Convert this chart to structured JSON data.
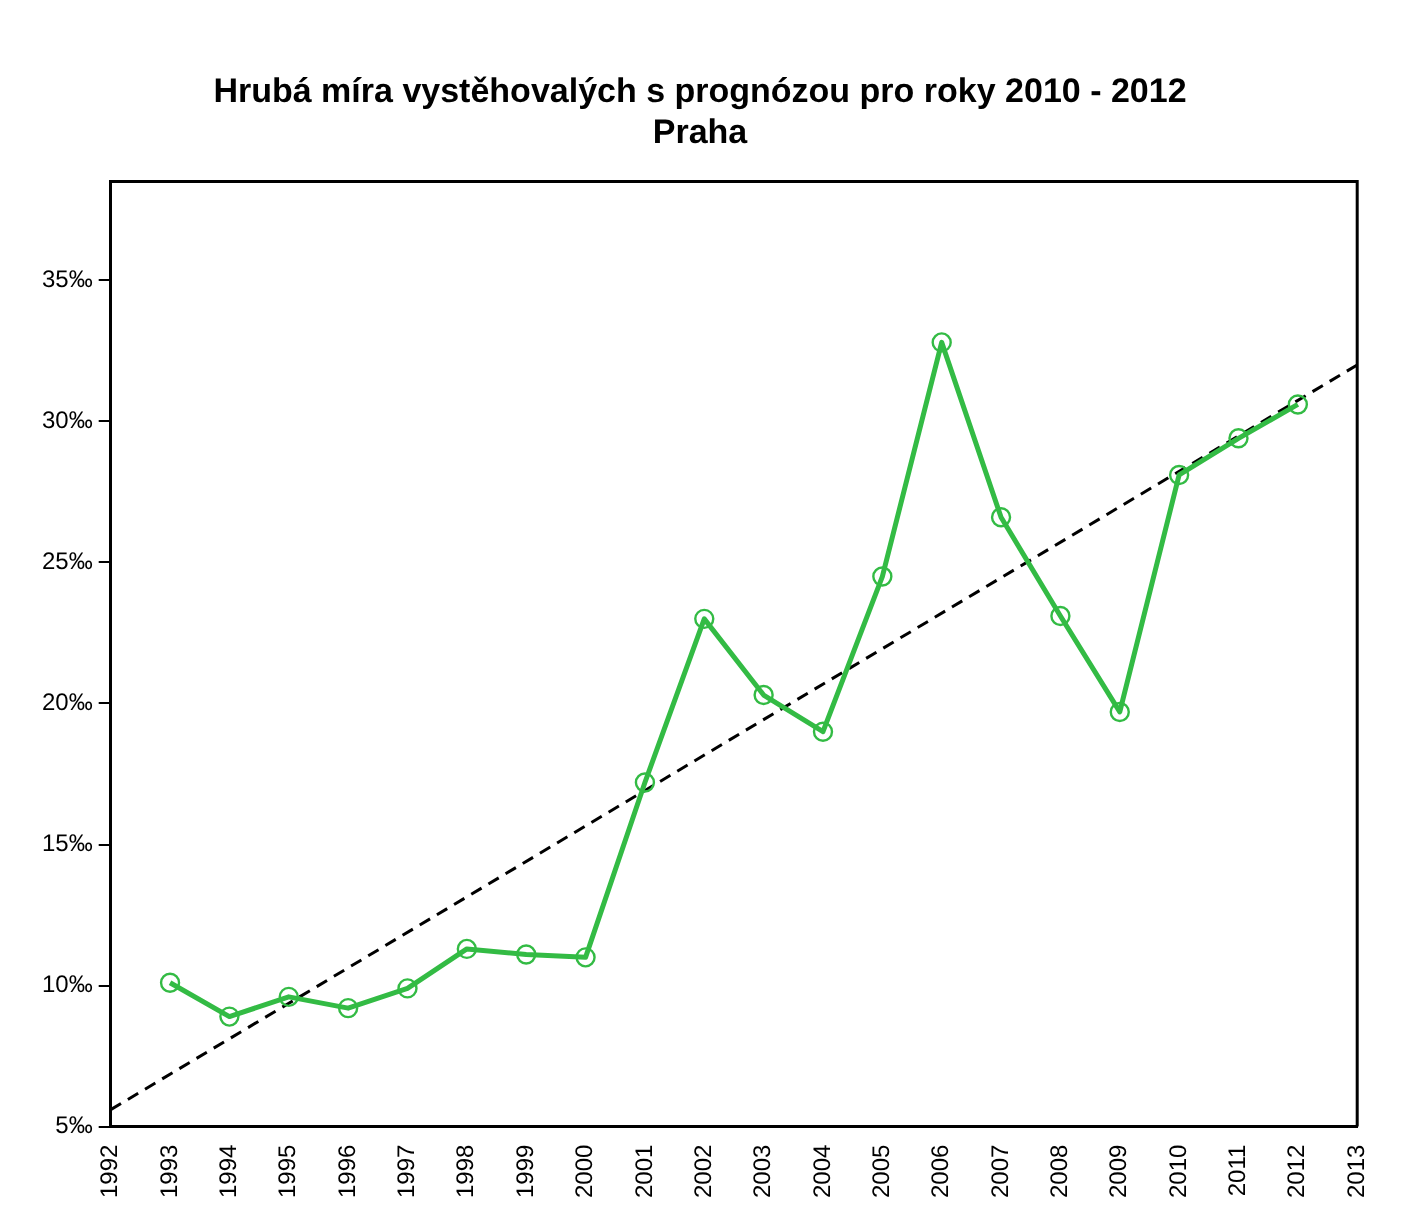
{
  "chart_data": {
    "type": "line",
    "title": "Hrubá míra vystěhovalých s prognózou pro roky 2010 - 2012",
    "subtitle": "Praha",
    "x": [
      1993,
      1994,
      1995,
      1996,
      1997,
      1998,
      1999,
      2000,
      2001,
      2002,
      2003,
      2004,
      2005,
      2006,
      2007,
      2008,
      2009,
      2010,
      2011,
      2012
    ],
    "series": [
      {
        "color": "#33bb44",
        "marker": "circle",
        "line_style": "solid",
        "values": [
          10.1,
          8.9,
          9.6,
          9.2,
          9.9,
          11.3,
          11.1,
          11.0,
          17.2,
          23.0,
          20.3,
          19.0,
          24.5,
          32.8,
          26.6,
          23.1,
          19.7,
          28.1,
          29.4,
          30.6
        ]
      },
      {
        "type": "line",
        "color": "#000000",
        "marker": "none",
        "line_style": "dashed",
        "x": [
          1992,
          2013
        ],
        "values": [
          5.6,
          32.0
        ]
      }
    ],
    "xlim": [
      1992,
      2013
    ],
    "xticks": [
      1992,
      1993,
      1994,
      1995,
      1996,
      1997,
      1998,
      1999,
      2000,
      2001,
      2002,
      2003,
      2004,
      2005,
      2006,
      2007,
      2008,
      2009,
      2010,
      2011,
      2012,
      2013
    ],
    "ylim": [
      5,
      38.5
    ],
    "yticks": [
      {
        "value": 5,
        "label": "5‰"
      },
      {
        "value": 10,
        "label": "10‰"
      },
      {
        "value": 15,
        "label": "15‰"
      },
      {
        "value": 20,
        "label": "20‰"
      },
      {
        "value": 25,
        "label": "25‰"
      },
      {
        "value": 30,
        "label": "30‰"
      },
      {
        "value": 35,
        "label": "35‰"
      }
    ],
    "grid": false,
    "legend": false
  }
}
